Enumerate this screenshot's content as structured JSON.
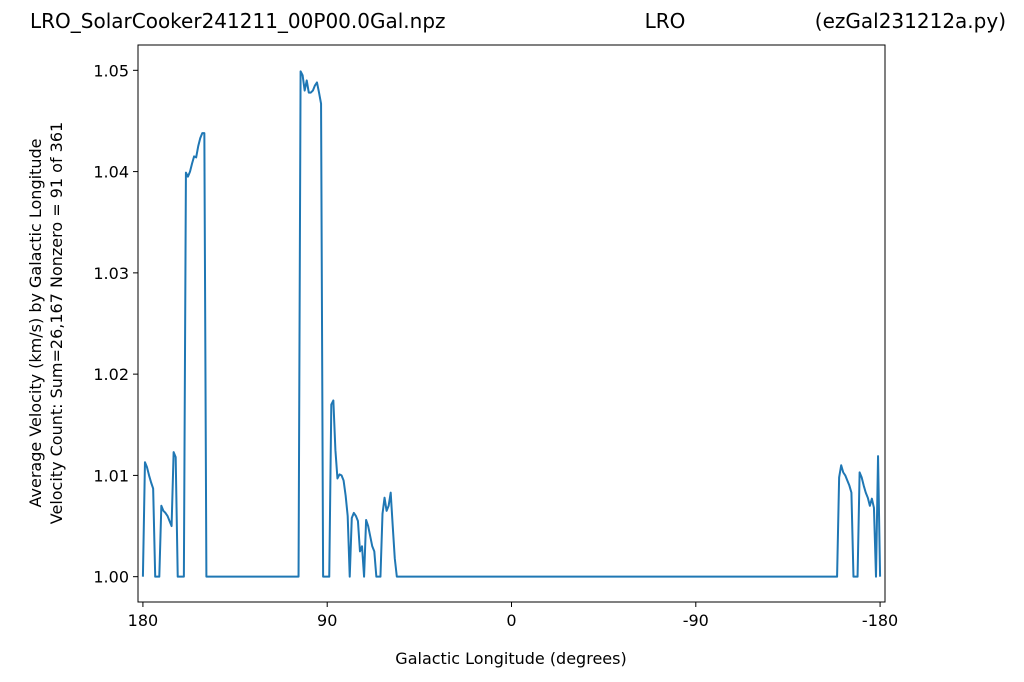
{
  "chart_data": {
    "type": "line",
    "title": "LRO_SolarCooker241211_00P00.0Gal.npz",
    "title_center": "LRO",
    "title_right": "(ezGal231212a.py)",
    "xlabel": "Galactic Longitude (degrees)",
    "ylabel": [
      "Average Velocity (km/s) by Galactic Longitude",
      "Velocity Count: Sum=26,167 Nonzero = 91 of 361"
    ],
    "x": [
      180,
      179,
      178,
      177,
      176,
      175,
      174,
      172,
      171,
      170,
      169,
      168,
      167,
      166,
      165,
      164,
      163,
      160,
      159,
      158,
      157,
      156,
      155,
      154,
      153,
      152,
      151,
      150,
      149,
      104,
      103,
      102,
      101,
      100,
      99,
      98,
      97,
      96,
      95,
      94,
      93,
      92,
      89,
      88,
      87,
      86,
      85,
      84,
      83,
      82,
      81,
      80,
      79,
      78,
      77,
      76,
      75,
      74,
      73,
      72,
      71,
      70,
      69,
      68,
      67,
      66,
      64,
      63,
      62,
      61,
      60,
      59,
      58,
      57,
      56,
      -159,
      -160,
      -161,
      -162,
      -163,
      -164,
      -165,
      -166,
      -167,
      -169,
      -170,
      -171,
      -172,
      -173,
      -174,
      -175,
      -176,
      -177,
      -178,
      -179,
      -180
    ],
    "series": [
      {
        "name": "velocity",
        "color": "#1f77b4",
        "values": [
          1.0,
          1.0113,
          1.0108,
          1.01,
          1.0093,
          1.0087,
          1.0,
          1.0,
          1.007,
          1.0065,
          1.0063,
          1.006,
          1.0055,
          1.005,
          1.0123,
          1.0118,
          1.0,
          1.0,
          1.0399,
          1.0395,
          1.04,
          1.0408,
          1.0415,
          1.0414,
          1.0425,
          1.0433,
          1.0438,
          1.0438,
          1.0,
          1.0,
          1.0499,
          1.0495,
          1.048,
          1.049,
          1.0478,
          1.0478,
          1.048,
          1.0485,
          1.0488,
          1.0478,
          1.0467,
          1.0,
          1.0,
          1.017,
          1.0174,
          1.0125,
          1.0097,
          1.0101,
          1.01,
          1.0095,
          1.008,
          1.006,
          1.0,
          1.0058,
          1.0063,
          1.006,
          1.0055,
          1.0025,
          1.003,
          1.0,
          1.0056,
          1.005,
          1.004,
          1.003,
          1.0025,
          1.0,
          1.0,
          1.0062,
          1.0078,
          1.0065,
          1.007,
          1.0083,
          1.005,
          1.0018,
          1.0,
          1.0,
          1.0098,
          1.011,
          1.0103,
          1.01,
          1.0095,
          1.009,
          1.0083,
          1.0,
          1.0,
          1.0103,
          1.0098,
          1.009,
          1.0083,
          1.0078,
          1.007,
          1.0077,
          1.0068,
          1.0,
          1.0119,
          1.0
        ]
      }
    ],
    "xlim": [
      182.4,
      -182.4
    ],
    "xticks": [
      180,
      90,
      0,
      -90,
      -180
    ],
    "ylim": [
      0.9975,
      1.0525
    ],
    "yticks": [
      {
        "value": 1.0,
        "label": "1.00"
      },
      1.01,
      1.02,
      1.03,
      1.04,
      1.05
    ],
    "grid": false
  }
}
